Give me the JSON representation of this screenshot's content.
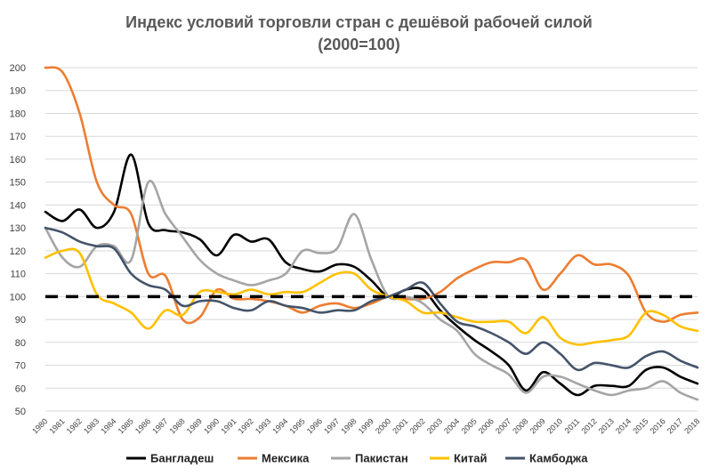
{
  "chart_data": {
    "type": "line",
    "title_line1": "Индекс условий торговли стран с дешёвой рабочей силой",
    "title_line2": "(2000=100)",
    "xlabel": "",
    "ylabel": "",
    "ylim": [
      50,
      200
    ],
    "yticks": [
      50,
      60,
      70,
      80,
      90,
      100,
      110,
      120,
      130,
      140,
      150,
      160,
      170,
      180,
      190,
      200
    ],
    "grid": true,
    "legend_position": "bottom",
    "reference_line": {
      "value": 100,
      "color": "#000000",
      "style": "dashed"
    },
    "x": [
      1980,
      1981,
      1982,
      1983,
      1984,
      1985,
      1986,
      1987,
      1988,
      1989,
      1990,
      1991,
      1992,
      1993,
      1994,
      1995,
      1996,
      1997,
      1998,
      1999,
      2000,
      2001,
      2002,
      2003,
      2004,
      2005,
      2006,
      2007,
      2008,
      2009,
      2010,
      2011,
      2012,
      2013,
      2014,
      2015,
      2016,
      2017,
      2018
    ],
    "series": [
      {
        "name": "Бангладеш",
        "color": "#000000",
        "values": [
          137,
          133,
          138,
          130,
          137,
          162,
          132,
          129,
          128,
          125,
          118,
          127,
          124,
          125,
          115,
          112,
          111,
          114,
          113,
          107,
          100,
          103,
          103,
          94,
          87,
          81,
          76,
          70,
          59,
          67,
          62,
          57,
          61,
          61,
          61,
          68,
          69,
          65,
          62
        ]
      },
      {
        "name": "Мексика",
        "color": "#ed7d31",
        "values": [
          200,
          198,
          180,
          150,
          140,
          136,
          110,
          109,
          90,
          91,
          103,
          99,
          99,
          98,
          96,
          93,
          96,
          97,
          95,
          97,
          100,
          99,
          99,
          102,
          108,
          112,
          115,
          115,
          116,
          103,
          110,
          118,
          114,
          114,
          109,
          93,
          89,
          92,
          93
        ]
      },
      {
        "name": "Пакистан",
        "color": "#a5a5a5",
        "values": [
          130,
          117,
          113,
          122,
          122,
          116,
          150,
          136,
          126,
          116,
          110,
          107,
          105,
          107,
          110,
          120,
          119,
          121,
          136,
          116,
          100,
          100,
          97,
          90,
          85,
          75,
          70,
          66,
          58,
          65,
          65,
          62,
          59,
          57,
          59,
          60,
          63,
          58,
          55
        ]
      },
      {
        "name": "Китай",
        "color": "#ffc000",
        "values": [
          117,
          120,
          119,
          101,
          97,
          93,
          86,
          94,
          92,
          102,
          102,
          101,
          103,
          101,
          102,
          102,
          106,
          110,
          110,
          103,
          100,
          98,
          93,
          93,
          91,
          89,
          89,
          89,
          84,
          91,
          82,
          79,
          80,
          81,
          83,
          93,
          92,
          87,
          85
        ]
      },
      {
        "name": "Камбоджа",
        "color": "#44546a",
        "values": [
          130,
          128,
          124,
          122,
          121,
          110,
          105,
          103,
          96,
          98,
          98,
          95,
          94,
          98,
          96,
          95,
          93,
          94,
          94,
          98,
          100,
          103,
          106,
          97,
          89,
          87,
          84,
          80,
          75,
          80,
          75,
          68,
          71,
          70,
          69,
          74,
          76,
          72,
          69
        ]
      }
    ]
  }
}
